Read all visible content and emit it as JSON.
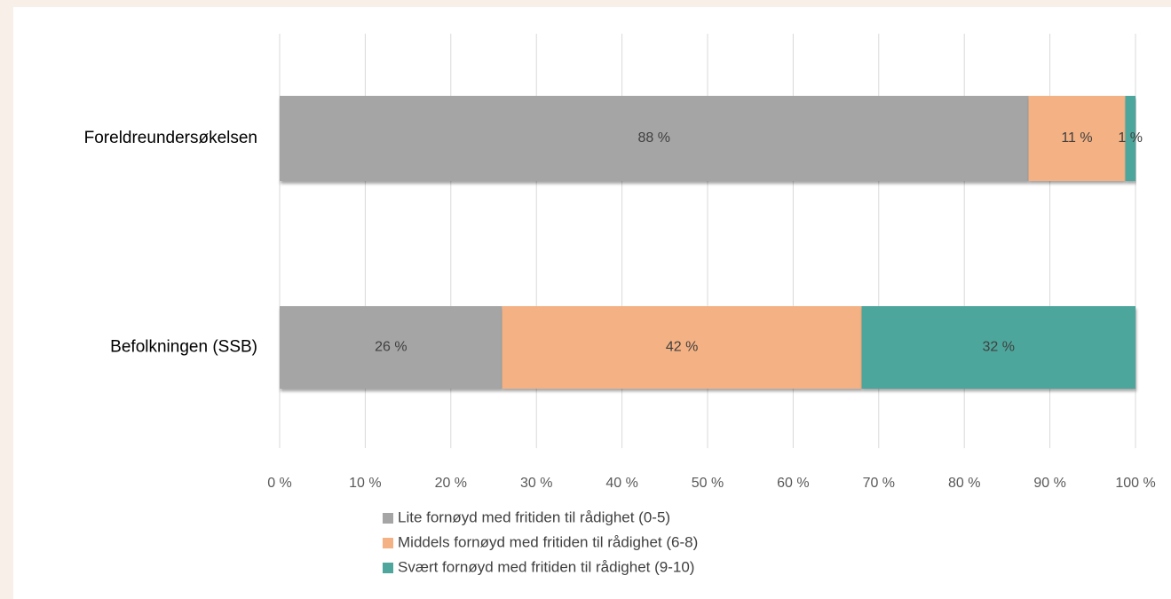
{
  "chart_data": {
    "type": "bar",
    "orientation": "horizontal",
    "stacked": true,
    "categories": [
      "Foreldreundersøkelsen",
      "Befolkningen (SSB)"
    ],
    "series": [
      {
        "name": "Lite fornøyd med fritiden til rådighet (0-5)",
        "color": "#a5a5a5",
        "values": [
          87.5,
          26
        ],
        "value_labels": [
          "88 %",
          "26 %"
        ]
      },
      {
        "name": "Middels fornøyd med fritiden til rådighet (6-8)",
        "color": "#f4b183",
        "values": [
          11.3,
          42
        ],
        "value_labels": [
          "11 %",
          "42 %"
        ]
      },
      {
        "name": "Svært fornøyd med fritiden til rådighet (9-10)",
        "color": "#4ea69c",
        "values": [
          1.2,
          32
        ],
        "value_labels": [
          "1 %",
          "32 %"
        ]
      }
    ],
    "xlim": [
      0,
      100
    ],
    "xticks": [
      {
        "value": 0,
        "label": "0 %"
      },
      {
        "value": 10,
        "label": "10 %"
      },
      {
        "value": 20,
        "label": "20 %"
      },
      {
        "value": 30,
        "label": "30 %"
      },
      {
        "value": 40,
        "label": "40 %"
      },
      {
        "value": 50,
        "label": "50 %"
      },
      {
        "value": 60,
        "label": "60 %"
      },
      {
        "value": 70,
        "label": "70 %"
      },
      {
        "value": 80,
        "label": "80 %"
      },
      {
        "value": 90,
        "label": "90 %"
      },
      {
        "value": 100,
        "label": "100 %"
      }
    ],
    "grid": true,
    "legend": "bottom"
  }
}
